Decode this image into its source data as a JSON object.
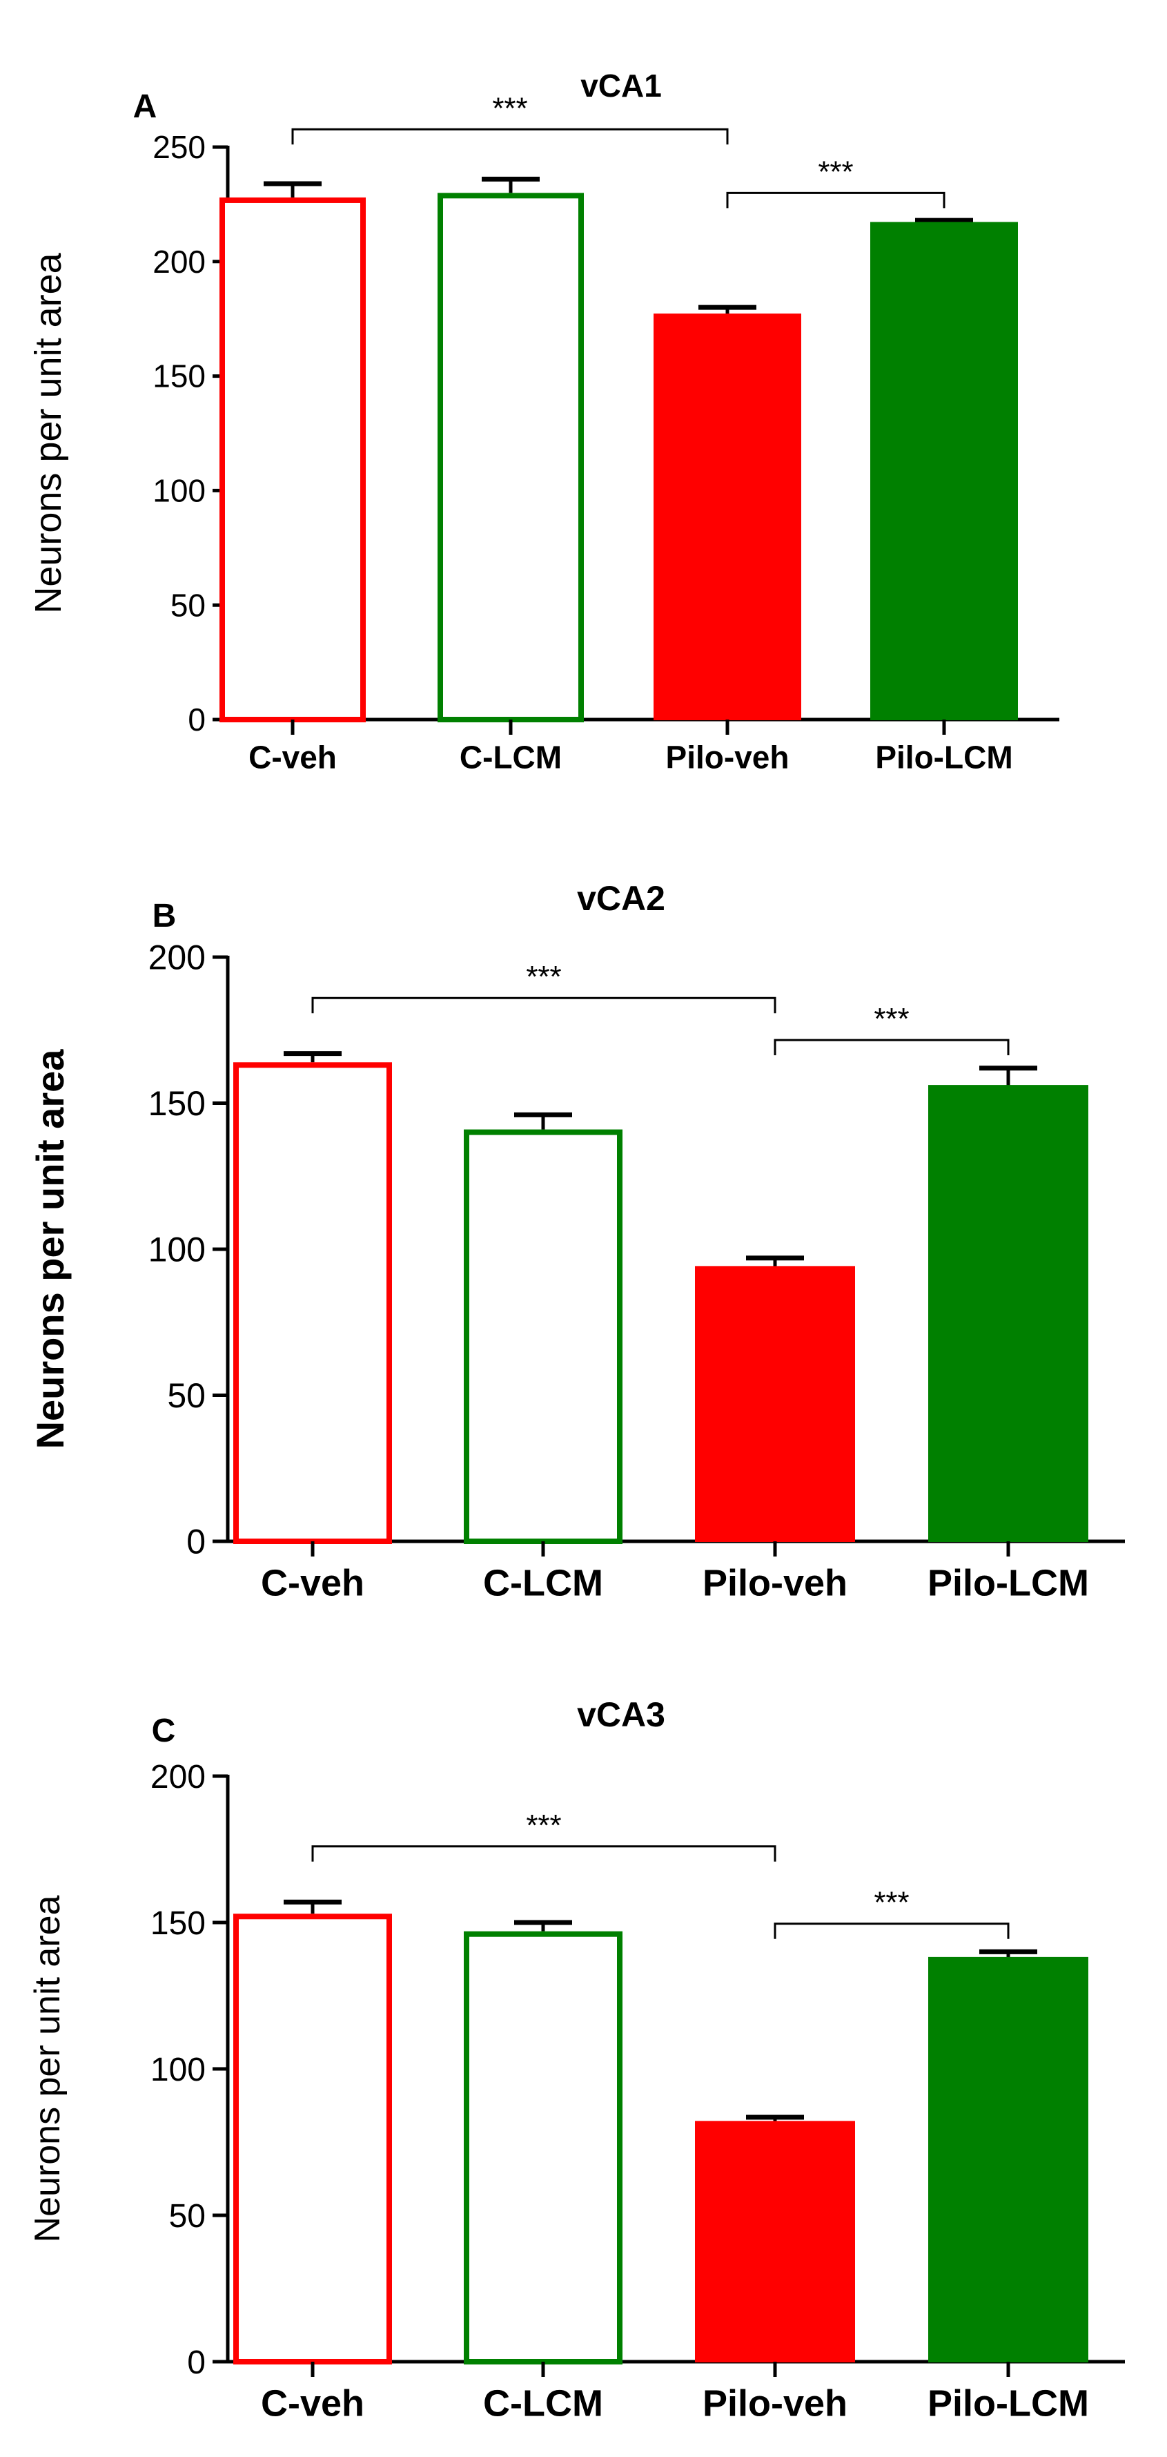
{
  "colors": {
    "control_vehicle": "#ff0000",
    "control_lcm": "#008000",
    "axis": "#000000"
  },
  "chart_data": [
    {
      "type": "bar",
      "panel": "A",
      "title": "vCA1",
      "ylabel": "Neurons per unit area",
      "ylim": [
        0,
        250
      ],
      "yticks": [
        0,
        50,
        100,
        150,
        200,
        250
      ],
      "categories": [
        "C-veh",
        "C-LCM",
        "Pilo-veh",
        "Pilo-LCM"
      ],
      "values": [
        228,
        230,
        177,
        217
      ],
      "errors": [
        6,
        6,
        3,
        1
      ],
      "fills": [
        "open",
        "open",
        "filled",
        "filled"
      ],
      "significance": [
        {
          "from": "C-veh",
          "to": "Pilo-veh",
          "label": "***"
        },
        {
          "from": "Pilo-veh",
          "to": "Pilo-LCM",
          "label": "***"
        }
      ]
    },
    {
      "type": "bar",
      "panel": "B",
      "title": "vCA2",
      "ylabel": "Neurons per unit area",
      "ylim": [
        0,
        200
      ],
      "yticks": [
        0,
        50,
        100,
        150,
        200
      ],
      "categories": [
        "C-veh",
        "C-LCM",
        "Pilo-veh",
        "Pilo-LCM"
      ],
      "values": [
        164,
        141,
        94,
        156
      ],
      "errors": [
        3,
        5,
        3,
        6
      ],
      "fills": [
        "open",
        "open",
        "filled",
        "filled"
      ],
      "significance": [
        {
          "from": "C-veh",
          "to": "Pilo-veh",
          "label": "***"
        },
        {
          "from": "Pilo-veh",
          "to": "Pilo-LCM",
          "label": "***"
        }
      ]
    },
    {
      "type": "bar",
      "panel": "C",
      "title": "vCA3",
      "ylabel": "Neurons per unit area",
      "ylim": [
        0,
        200
      ],
      "yticks": [
        0,
        50,
        100,
        150,
        200
      ],
      "categories": [
        "C-veh",
        "C-LCM",
        "Pilo-veh",
        "Pilo-LCM"
      ],
      "values": [
        153,
        147,
        82,
        138
      ],
      "errors": [
        4,
        3,
        1.5,
        2
      ],
      "fills": [
        "open",
        "open",
        "filled",
        "filled"
      ],
      "significance": [
        {
          "from": "C-veh",
          "to": "Pilo-veh",
          "label": "***"
        },
        {
          "from": "Pilo-veh",
          "to": "Pilo-LCM",
          "label": "***"
        }
      ]
    }
  ]
}
